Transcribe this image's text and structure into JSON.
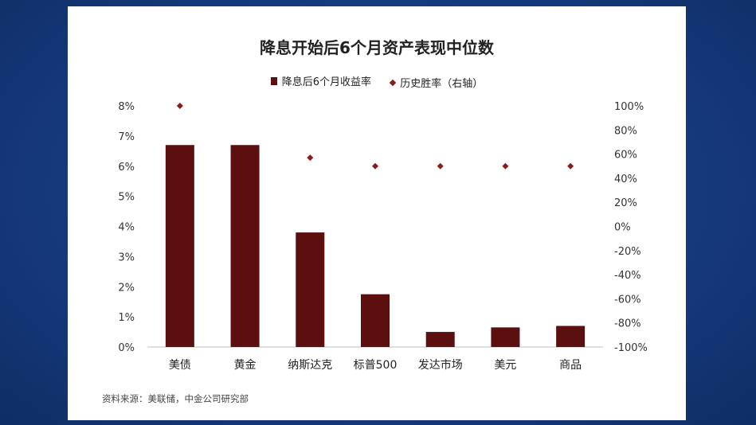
{
  "card": {
    "title": "降息开始后6个月资产表现中位数",
    "source": "资料来源：美联储，中金公司研究部"
  },
  "colors": {
    "bar": "#5b0f0f",
    "marker": "#8b1a1a",
    "axis": "#bdbdbd"
  },
  "chart_data": {
    "type": "bar",
    "title": "降息开始后6个月资产表现中位数",
    "categories": [
      "美债",
      "黄金",
      "纳斯达克",
      "标普500",
      "发达市场",
      "美元",
      "商品"
    ],
    "series": [
      {
        "name": "降息后6个月收益率",
        "type": "bar",
        "axis": "left",
        "values": [
          6.7,
          6.7,
          3.8,
          1.75,
          0.5,
          0.65,
          0.7
        ]
      },
      {
        "name": "历史胜率（右轴）",
        "type": "scatter",
        "axis": "right",
        "values": [
          100,
          null,
          57,
          50,
          50,
          50,
          50
        ]
      }
    ],
    "y_left": {
      "ylim": [
        0,
        8
      ],
      "ticks": [
        "0%",
        "1%",
        "2%",
        "3%",
        "4%",
        "5%",
        "6%",
        "7%",
        "8%"
      ]
    },
    "y_right": {
      "ylim": [
        -100,
        100
      ],
      "ticks": [
        "-100%",
        "-80%",
        "-60%",
        "-40%",
        "-20%",
        "0%",
        "20%",
        "40%",
        "60%",
        "80%",
        "100%"
      ]
    },
    "legend": "top-center",
    "grid": false
  }
}
